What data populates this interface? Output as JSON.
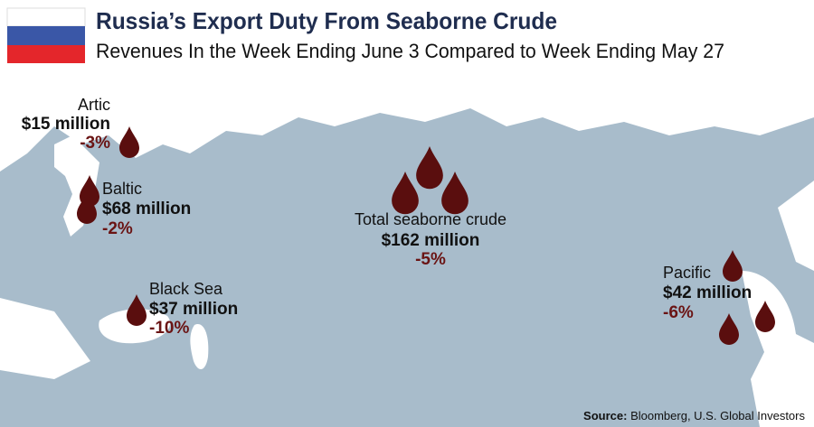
{
  "header": {
    "title": "Russia’s Export Duty From Seaborne Crude",
    "subtitle": "Revenues In the Week Ending June 3 Compared to Week Ending May 27"
  },
  "regions": [
    {
      "name": "Artic",
      "amount": "$15 million",
      "change": "-3%"
    },
    {
      "name": "Baltic",
      "amount": "$68 million",
      "change": "-2%"
    },
    {
      "name": "Total seaborne crude",
      "amount": "$162 million",
      "change": "-5%"
    },
    {
      "name": "Black Sea",
      "amount": "$37 million",
      "change": "-10%"
    },
    {
      "name": "Pacific",
      "amount": "$42 million",
      "change": "-6%"
    }
  ],
  "source": {
    "label": "Source:",
    "text": "Bloomberg, U.S. Global Investors"
  }
}
